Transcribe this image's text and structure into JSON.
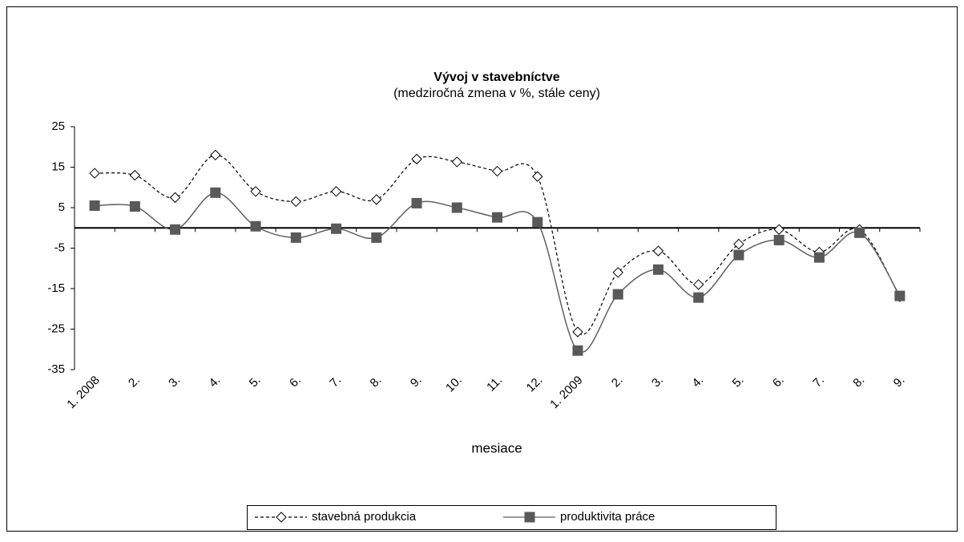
{
  "chart_data": {
    "type": "line",
    "title": "Vývoj v stavebníctve",
    "subtitle": "(medziročná zmena v %, stále ceny)",
    "x_label": "mesiace",
    "categories": [
      "1. 2008",
      "2.",
      "3.",
      "4.",
      "5.",
      "6.",
      "7.",
      "8.",
      "9.",
      "10.",
      "11.",
      "12.",
      "1. 2009",
      "2.",
      "3.",
      "4.",
      "5.",
      "6.",
      "7.",
      "8.",
      "9."
    ],
    "series": [
      {
        "name": "stavebná produkcia",
        "color": "#000000",
        "marker": "diamond",
        "dash": true,
        "values": [
          13.5,
          13,
          7.5,
          18,
          9,
          6.5,
          9,
          7,
          17,
          16.3,
          14,
          12.7,
          -25.7,
          -11,
          -5.7,
          -14,
          -4,
          -0.4,
          -6,
          -0.4,
          -17
        ]
      },
      {
        "name": "produktivita práce",
        "color": "#606060",
        "marker": "square",
        "dash": false,
        "values": [
          5.5,
          5.3,
          -0.4,
          8.7,
          0.4,
          -2.4,
          -0.2,
          -2.4,
          6.1,
          5,
          2.6,
          1.4,
          -30.3,
          -16.4,
          -10.3,
          -17.2,
          -6.7,
          -3,
          -7.3,
          -1.2,
          -16.8
        ]
      }
    ],
    "ylim": [
      -35,
      25
    ],
    "yticks": [
      25,
      15,
      5,
      -5,
      -15,
      -25,
      -35
    ],
    "grid": false,
    "legend": "bottom"
  }
}
